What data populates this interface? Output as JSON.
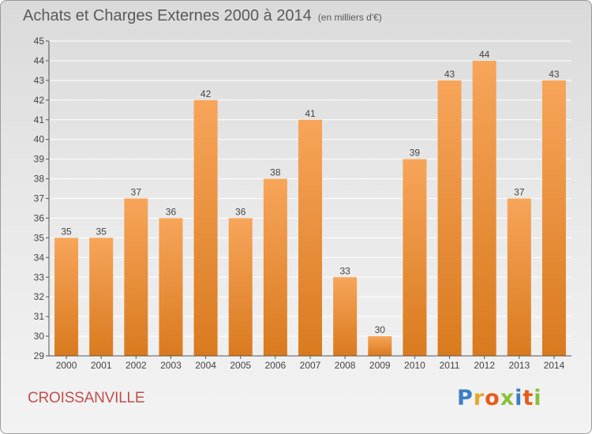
{
  "title": "Achats et Charges Externes 2000 à 2014",
  "unit": "(en milliers d'€)",
  "city": "CROISSANVILLE",
  "logo": {
    "text": "Proxiti"
  },
  "colors": {
    "bar_top": "#f7a55a",
    "bar_bottom": "#d97a1e",
    "title": "#5a5a5a",
    "city": "#c0504d"
  },
  "chart_data": {
    "type": "bar",
    "title": "Achats et Charges Externes 2000 à 2014",
    "subtitle": "(en milliers d'€)",
    "xlabel": "",
    "ylabel": "",
    "categories": [
      "2000",
      "2001",
      "2002",
      "2003",
      "2004",
      "2005",
      "2006",
      "2007",
      "2008",
      "2009",
      "2010",
      "2011",
      "2012",
      "2013",
      "2014"
    ],
    "values": [
      35,
      35,
      37,
      36,
      42,
      36,
      38,
      41,
      33,
      30,
      39,
      43,
      44,
      37,
      43
    ],
    "ylim": [
      29,
      45
    ],
    "yticks": [
      29,
      30,
      31,
      32,
      33,
      34,
      35,
      36,
      37,
      38,
      39,
      40,
      41,
      42,
      43,
      44,
      45
    ],
    "grid": true,
    "data_labels": true
  }
}
